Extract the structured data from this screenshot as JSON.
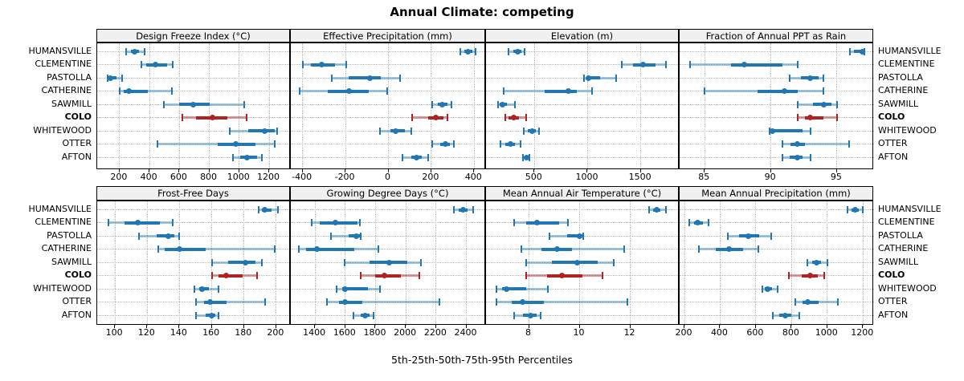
{
  "title": "Annual Climate: competing",
  "caption": "5th-25th-50th-75th-95th Percentiles",
  "colors": {
    "series": "#2077b4",
    "series_faint": "rgba(32,119,180,0.42)",
    "highlight": "#b22222",
    "highlight_faint": "rgba(178,34,34,0.45)",
    "strip_bg": "#f0f0f0",
    "grid": "#b8b8b8",
    "border": "#000000"
  },
  "chart_data": {
    "type": "dotplot-intervals",
    "note": "each site has [5th,25th,50th,75th,95th] percentile values",
    "sites": [
      "HUMANSVILLE",
      "CLEMENTINE",
      "PASTOLLA",
      "CATHERINE",
      "SAWMILL",
      "COLO",
      "WHITEWOOD",
      "OTTER",
      "AFTON"
    ],
    "highlight_site": "COLO",
    "legend_position": "none",
    "grid": "dotted",
    "panels": [
      {
        "title": "Design Freeze Index (°C)",
        "row": 0,
        "col": 0,
        "xlim": [
          50,
          1345
        ],
        "ticks": [
          200,
          400,
          600,
          800,
          1000,
          1200
        ],
        "tick_labels": [
          "200",
          "400",
          "600",
          "800",
          "1000",
          "1200"
        ],
        "values": [
          [
            245,
            275,
            300,
            330,
            365
          ],
          [
            345,
            380,
            440,
            515,
            555
          ],
          [
            118,
            128,
            138,
            180,
            218
          ],
          [
            200,
            230,
            260,
            390,
            550
          ],
          [
            495,
            600,
            690,
            800,
            1035
          ],
          [
            620,
            710,
            820,
            920,
            1050
          ],
          [
            935,
            1060,
            1170,
            1240,
            1255
          ],
          [
            455,
            855,
            975,
            1110,
            1235
          ],
          [
            960,
            1005,
            1050,
            1120,
            1150
          ]
        ]
      },
      {
        "title": "Effective Precipitation (mm)",
        "row": 0,
        "col": 1,
        "xlim": [
          -455,
          455
        ],
        "ticks": [
          -400,
          -200,
          0,
          200,
          400
        ],
        "tick_labels": [
          "-400",
          "-200",
          "0",
          "200",
          "400"
        ],
        "values": [
          [
            335,
            355,
            370,
            390,
            405
          ],
          [
            -400,
            -360,
            -310,
            -250,
            -195
          ],
          [
            -265,
            -187,
            -86,
            -35,
            55
          ],
          [
            -415,
            -282,
            -184,
            -92,
            -5
          ],
          [
            205,
            230,
            250,
            275,
            295
          ],
          [
            110,
            185,
            222,
            255,
            275
          ],
          [
            -40,
            10,
            35,
            75,
            105
          ],
          [
            205,
            240,
            265,
            285,
            305
          ],
          [
            65,
            105,
            130,
            155,
            185
          ]
        ]
      },
      {
        "title": "Elevation (m)",
        "row": 0,
        "col": 2,
        "xlim": [
          45,
          1865
        ],
        "ticks": [
          500,
          1000,
          1500
        ],
        "tick_labels": [
          "500",
          "1000",
          "1500"
        ],
        "values": [
          [
            255,
            300,
            340,
            380,
            410
          ],
          [
            1325,
            1430,
            1525,
            1640,
            1740
          ],
          [
            965,
            990,
            1010,
            1120,
            1265
          ],
          [
            210,
            600,
            820,
            900,
            1045
          ],
          [
            155,
            175,
            200,
            240,
            320
          ],
          [
            225,
            260,
            305,
            355,
            420
          ],
          [
            400,
            440,
            480,
            515,
            540
          ],
          [
            180,
            230,
            275,
            320,
            370
          ],
          [
            390,
            405,
            425,
            440,
            455
          ]
        ]
      },
      {
        "title": "Fraction of Annual PPT as Rain",
        "row": 0,
        "col": 3,
        "xlim": [
          83.1,
          97.8
        ],
        "ticks": [
          85,
          90,
          95
        ],
        "tick_labels": [
          "85",
          "90",
          "95"
        ],
        "values": [
          [
            96.0,
            96.3,
            96.9,
            97.0,
            97.1
          ],
          [
            83.9,
            87.0,
            88.0,
            90.9,
            92.0
          ],
          [
            91.4,
            92.3,
            93.0,
            93.6,
            94.0
          ],
          [
            85.0,
            89.0,
            91.0,
            92.0,
            94.0
          ],
          [
            92.0,
            93.2,
            94.0,
            94.6,
            95.0
          ],
          [
            92.0,
            92.6,
            93.0,
            94.0,
            95.0
          ],
          [
            89.9,
            90.0,
            90.1,
            92.4,
            93.0
          ],
          [
            90.9,
            91.5,
            92.0,
            92.6,
            95.9
          ],
          [
            90.9,
            91.4,
            92.0,
            92.4,
            93.0
          ]
        ]
      },
      {
        "title": "Frost-Free Days",
        "row": 1,
        "col": 0,
        "xlim": [
          89,
          209
        ],
        "ticks": [
          100,
          120,
          140,
          160,
          180,
          200
        ],
        "tick_labels": [
          "100",
          "120",
          "140",
          "160",
          "180",
          "200"
        ],
        "values": [
          [
            189,
            191,
            193,
            197,
            201
          ],
          [
            96,
            106,
            114,
            128,
            136
          ],
          [
            115,
            126,
            133,
            137,
            140
          ],
          [
            127,
            131,
            140,
            156,
            199
          ],
          [
            160,
            170,
            181,
            187,
            191
          ],
          [
            160,
            164,
            169,
            179,
            188
          ],
          [
            149,
            152,
            154,
            158,
            164
          ],
          [
            150,
            155,
            159,
            169,
            193
          ],
          [
            150,
            156,
            160,
            162,
            164
          ]
        ]
      },
      {
        "title": "Growing Degree Days (°C)",
        "row": 1,
        "col": 1,
        "xlim": [
          1240,
          2530
        ],
        "ticks": [
          1400,
          1600,
          1800,
          2000,
          2200,
          2400
        ],
        "tick_labels": [
          "1400",
          "1600",
          "1800",
          "2000",
          "2200",
          "2400"
        ],
        "values": [
          [
            2315,
            2350,
            2380,
            2410,
            2445
          ],
          [
            1380,
            1430,
            1535,
            1680,
            1695
          ],
          [
            1505,
            1620,
            1675,
            1695,
            1700
          ],
          [
            1295,
            1340,
            1412,
            1660,
            1817
          ],
          [
            1595,
            1760,
            1888,
            2010,
            2100
          ],
          [
            1700,
            1800,
            1860,
            1965,
            2090
          ],
          [
            1545,
            1580,
            1600,
            1750,
            1830
          ],
          [
            1480,
            1560,
            1600,
            1715,
            2220
          ],
          [
            1655,
            1700,
            1730,
            1760,
            1785
          ]
        ]
      },
      {
        "title": "Mean Annual Air Temperature (°C)",
        "row": 1,
        "col": 2,
        "xlim": [
          6.3,
          13.95
        ],
        "ticks": [
          8,
          10,
          12
        ],
        "tick_labels": [
          "8",
          "10",
          "12"
        ],
        "values": [
          [
            12.75,
            12.9,
            13.05,
            13.2,
            13.4
          ],
          [
            7.4,
            7.9,
            8.3,
            9.2,
            9.55
          ],
          [
            8.8,
            9.5,
            10.0,
            10.1,
            10.15
          ],
          [
            7.7,
            8.5,
            9.1,
            9.7,
            11.75
          ],
          [
            7.9,
            8.9,
            9.9,
            10.7,
            11.35
          ],
          [
            7.9,
            8.7,
            9.3,
            10.1,
            10.9
          ],
          [
            6.7,
            6.95,
            7.1,
            7.9,
            8.75
          ],
          [
            6.7,
            7.3,
            7.75,
            8.6,
            11.9
          ],
          [
            7.4,
            7.75,
            8.05,
            8.3,
            8.45
          ]
        ]
      },
      {
        "title": "Mean Annual Precipitation (mm)",
        "row": 1,
        "col": 3,
        "xlim": [
          173,
          1262
        ],
        "ticks": [
          200,
          400,
          600,
          800,
          1000,
          1200
        ],
        "tick_labels": [
          "200",
          "400",
          "600",
          "800",
          "1000",
          "1200"
        ],
        "values": [
          [
            1115,
            1135,
            1155,
            1175,
            1200
          ],
          [
            227,
            255,
            276,
            305,
            337
          ],
          [
            443,
            505,
            557,
            620,
            687
          ],
          [
            281,
            375,
            451,
            530,
            614
          ],
          [
            889,
            915,
            938,
            965,
            1003
          ],
          [
            786,
            855,
            903,
            945,
            983
          ],
          [
            637,
            652,
            664,
            690,
            722
          ],
          [
            819,
            860,
            892,
            950,
            1059
          ],
          [
            697,
            730,
            763,
            800,
            843
          ]
        ]
      }
    ]
  }
}
